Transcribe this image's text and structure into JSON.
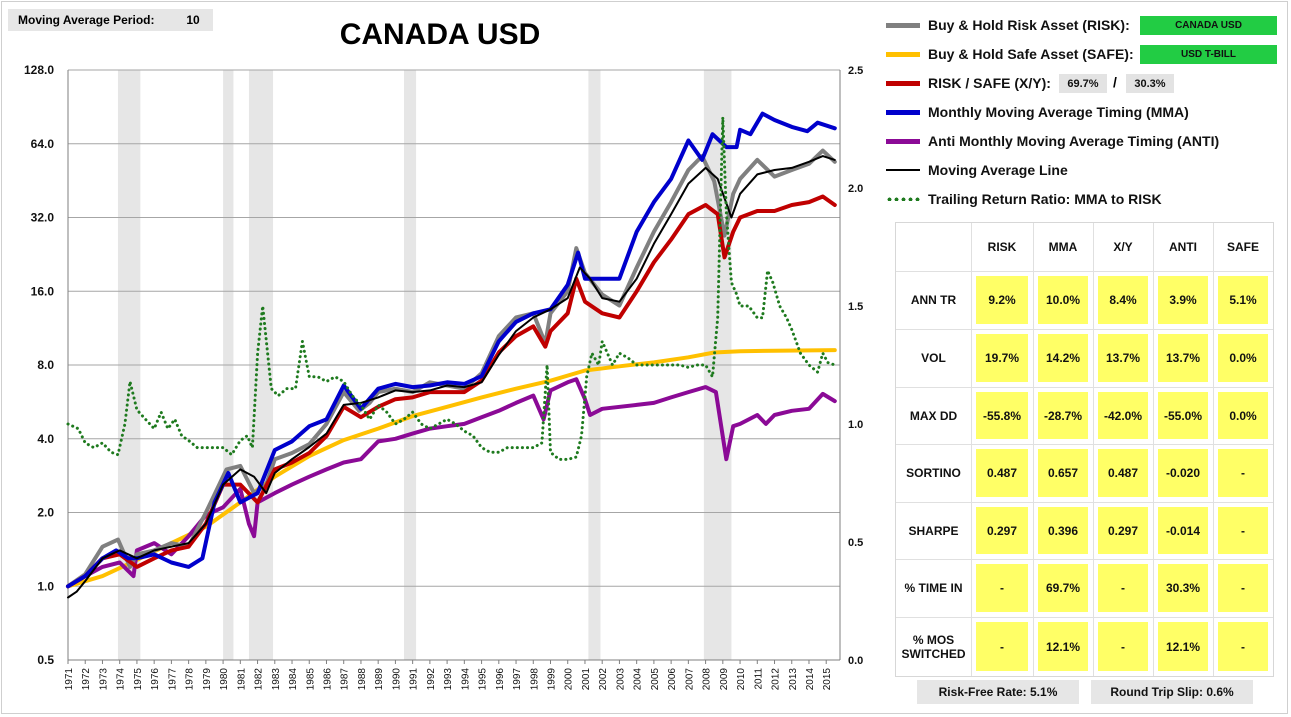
{
  "moving_average": {
    "label": "Moving Average Period:",
    "value": "10"
  },
  "title": "CANADA USD",
  "legend": {
    "risk": {
      "label": "Buy & Hold Risk Asset (RISK):",
      "color": "#808080",
      "tag": "CANADA USD"
    },
    "safe": {
      "label": "Buy & Hold Safe Asset (SAFE):",
      "color": "#ffc000",
      "tag": "USD T-BILL"
    },
    "xy": {
      "label": "RISK / SAFE (X/Y):",
      "color": "#c00000",
      "risk_pct": "69.7%",
      "slash": "/",
      "safe_pct": "30.3%"
    },
    "mma": {
      "label": "Monthly Moving Average Timing (MMA)",
      "color": "#0000cc"
    },
    "anti": {
      "label": "Anti Monthly Moving Average Timing (ANTI)",
      "color": "#8b0a96"
    },
    "ma_line": {
      "label": "Moving Average Line",
      "color": "#000000"
    },
    "ratio": {
      "label": "Trailing Return Ratio: MMA to RISK",
      "color": "#1e7a1e"
    }
  },
  "stats": {
    "headers": [
      "RISK",
      "MMA",
      "X/Y",
      "ANTI",
      "SAFE"
    ],
    "rows": [
      {
        "label": "ANN TR",
        "values": [
          "9.2%",
          "10.0%",
          "8.4%",
          "3.9%",
          "5.1%"
        ]
      },
      {
        "label": "VOL",
        "values": [
          "19.7%",
          "14.2%",
          "13.7%",
          "13.7%",
          "0.0%"
        ]
      },
      {
        "label": "MAX DD",
        "values": [
          "-55.8%",
          "-28.7%",
          "-42.0%",
          "-55.0%",
          "0.0%"
        ]
      },
      {
        "label": "SORTINO",
        "values": [
          "0.487",
          "0.657",
          "0.487",
          "-0.020",
          "-"
        ]
      },
      {
        "label": "SHARPE",
        "values": [
          "0.297",
          "0.396",
          "0.297",
          "-0.014",
          "-"
        ]
      },
      {
        "label": "% TIME IN",
        "values": [
          "-",
          "69.7%",
          "-",
          "30.3%",
          "-"
        ]
      },
      {
        "label": "% MOS SWITCHED",
        "values": [
          "-",
          "12.1%",
          "-",
          "12.1%",
          "-"
        ]
      }
    ]
  },
  "footer": {
    "risk_free": "Risk-Free Rate:   5.1%",
    "slip": "Round Trip Slip:   0.6%"
  },
  "chart_data": {
    "type": "line",
    "title": "CANADA USD",
    "y_scale": "log2",
    "ylim": [
      0.5,
      128
    ],
    "y_ticks": [
      "0.5",
      "1.0",
      "2.0",
      "4.0",
      "8.0",
      "16.0",
      "32.0",
      "64.0",
      "128.0"
    ],
    "y2lim": [
      0.0,
      2.5
    ],
    "y2_ticks": [
      "0.0",
      "0.5",
      "1.0",
      "1.5",
      "2.0",
      "2.5"
    ],
    "xlim": [
      1971,
      2015.8
    ],
    "x_ticks": [
      "1971",
      "1972",
      "1973",
      "1974",
      "1975",
      "1976",
      "1977",
      "1978",
      "1979",
      "1980",
      "1981",
      "1982",
      "1983",
      "1984",
      "1985",
      "1986",
      "1987",
      "1988",
      "1989",
      "1990",
      "1991",
      "1992",
      "1993",
      "1994",
      "1995",
      "1996",
      "1997",
      "1998",
      "1999",
      "2000",
      "2001",
      "2002",
      "2003",
      "2004",
      "2005",
      "2006",
      "2007",
      "2008",
      "2009",
      "2010",
      "2011",
      "2012",
      "2013",
      "2014",
      "2015"
    ],
    "recessions": [
      [
        1973.9,
        1975.2
      ],
      [
        1980.0,
        1980.6
      ],
      [
        1981.5,
        1982.9
      ],
      [
        1990.5,
        1991.2
      ],
      [
        2001.2,
        2001.9
      ],
      [
        2007.9,
        2009.5
      ]
    ],
    "series": [
      {
        "name": "RISK",
        "color": "#808080",
        "width": 4,
        "x": [
          1971,
          1972,
          1973,
          1973.9,
          1974.6,
          1975,
          1976,
          1977,
          1978,
          1979,
          1980.2,
          1981,
          1981.8,
          1982.5,
          1983,
          1984,
          1985,
          1986,
          1987,
          1987.9,
          1988.5,
          1989,
          1990,
          1991,
          1992,
          1993,
          1994,
          1995,
          1996,
          1997,
          1998,
          1998.7,
          1999,
          2000,
          2000.5,
          2001,
          2002,
          2003,
          2004,
          2005,
          2006,
          2007,
          2007.8,
          2008.5,
          2009.1,
          2009.6,
          2010,
          2011,
          2012,
          2013,
          2014,
          2014.8,
          2015.5
        ],
        "y": [
          1.0,
          1.12,
          1.45,
          1.55,
          1.2,
          1.35,
          1.4,
          1.5,
          1.45,
          2.0,
          3.0,
          3.1,
          2.4,
          2.6,
          3.3,
          3.5,
          3.8,
          4.6,
          6.2,
          5.2,
          5.6,
          6.2,
          6.4,
          6.2,
          6.8,
          6.6,
          6.4,
          7.4,
          10.5,
          12.5,
          13.0,
          9.8,
          13.0,
          16.0,
          24.0,
          19.0,
          15.5,
          14.0,
          20.0,
          28.0,
          37.0,
          50.0,
          57.0,
          45.0,
          27.0,
          40.0,
          46.0,
          55.0,
          47.0,
          50.0,
          53.0,
          60.0,
          54.0
        ]
      },
      {
        "name": "SAFE",
        "color": "#ffc000",
        "width": 4,
        "x": [
          1971,
          1973,
          1975,
          1977,
          1979,
          1981,
          1983,
          1985,
          1987,
          1989,
          1991,
          1993,
          1995,
          1997,
          1999,
          2001,
          2003,
          2005,
          2007,
          2008.5,
          2010,
          2012,
          2015.5
        ],
        "y": [
          1.0,
          1.1,
          1.28,
          1.5,
          1.75,
          2.2,
          2.8,
          3.4,
          3.95,
          4.4,
          4.95,
          5.4,
          5.9,
          6.4,
          6.9,
          7.6,
          7.9,
          8.2,
          8.6,
          9.0,
          9.1,
          9.15,
          9.2
        ]
      },
      {
        "name": "X/Y",
        "color": "#c00000",
        "width": 4,
        "x": [
          1971,
          1972,
          1973,
          1974,
          1975,
          1976,
          1977,
          1978,
          1979,
          1980,
          1981,
          1982,
          1983,
          1984,
          1985,
          1986,
          1987,
          1988,
          1989,
          1990,
          1991,
          1992,
          1993,
          1994,
          1995,
          1996,
          1997,
          1998,
          1998.7,
          1999,
          2000,
          2000.5,
          2001,
          2002,
          2003,
          2004,
          2005,
          2006,
          2007,
          2008,
          2008.7,
          2009.1,
          2009.6,
          2010,
          2011,
          2012,
          2013,
          2014,
          2014.8,
          2015.5
        ],
        "y": [
          1.0,
          1.1,
          1.3,
          1.35,
          1.2,
          1.3,
          1.4,
          1.45,
          1.8,
          2.6,
          2.6,
          2.2,
          3.0,
          3.2,
          3.5,
          4.1,
          5.4,
          4.9,
          5.4,
          5.8,
          5.9,
          6.2,
          6.2,
          6.2,
          6.9,
          9.0,
          10.5,
          11.5,
          9.5,
          11.0,
          13.0,
          18.0,
          14.5,
          13.0,
          12.5,
          16.0,
          21.0,
          26.0,
          33.0,
          36.0,
          33.0,
          22.0,
          28.0,
          32.0,
          34.0,
          34.0,
          36.0,
          37.0,
          39.0,
          36.0
        ]
      },
      {
        "name": "MMA",
        "color": "#0000cc",
        "width": 4,
        "x": [
          1971,
          1972,
          1973,
          1973.8,
          1974.5,
          1975,
          1976,
          1977,
          1978,
          1978.8,
          1979.5,
          1980.3,
          1981,
          1982,
          1983,
          1984,
          1985,
          1986,
          1987,
          1988,
          1989,
          1990,
          1991,
          1992,
          1993,
          1994,
          1995,
          1996,
          1997,
          1998,
          1999,
          2000,
          2000.6,
          2001,
          2002,
          2003,
          2004,
          2005,
          2006,
          2007,
          2007.8,
          2008.4,
          2009.2,
          2009.8,
          2010,
          2010.6,
          2011.3,
          2012,
          2013,
          2013.9,
          2014.5,
          2015.5
        ],
        "y": [
          1.0,
          1.1,
          1.3,
          1.4,
          1.3,
          1.3,
          1.35,
          1.25,
          1.2,
          1.3,
          2.2,
          2.9,
          2.2,
          2.4,
          3.6,
          3.9,
          4.5,
          4.8,
          6.6,
          5.3,
          6.4,
          6.7,
          6.5,
          6.6,
          6.8,
          6.7,
          7.2,
          10.0,
          12.0,
          13.0,
          13.5,
          17.0,
          23.0,
          18.0,
          18.0,
          18.0,
          28.0,
          37.0,
          46.0,
          66.0,
          55.0,
          70.0,
          62.0,
          62.0,
          73.0,
          70.0,
          85.0,
          80.0,
          75.0,
          72.0,
          78.0,
          74.0
        ]
      },
      {
        "name": "ANTI",
        "color": "#8b0a96",
        "width": 4,
        "x": [
          1971,
          1972,
          1973,
          1974,
          1974.8,
          1975,
          1976,
          1977,
          1978,
          1979,
          1980,
          1981,
          1981.5,
          1981.8,
          1982,
          1983,
          1984,
          1985,
          1986,
          1987,
          1988,
          1989,
          1990,
          1991,
          1992,
          1993,
          1994,
          1995,
          1996,
          1997,
          1998,
          1998.6,
          1999,
          2000,
          2000.5,
          2001,
          2001.3,
          2002,
          2004,
          2005,
          2006,
          2007,
          2008,
          2008.6,
          2009.2,
          2009.6,
          2010,
          2011,
          2011.5,
          2012,
          2013,
          2014,
          2014.8,
          2015.5
        ],
        "y": [
          1.0,
          1.1,
          1.2,
          1.25,
          1.1,
          1.4,
          1.5,
          1.35,
          1.6,
          1.95,
          2.1,
          2.5,
          1.8,
          1.6,
          2.2,
          2.4,
          2.6,
          2.8,
          3.0,
          3.2,
          3.3,
          3.9,
          4.0,
          4.2,
          4.4,
          4.5,
          4.6,
          4.9,
          5.2,
          5.6,
          6.0,
          4.8,
          6.3,
          6.8,
          7.0,
          5.8,
          5.0,
          5.3,
          5.5,
          5.6,
          5.9,
          6.2,
          6.5,
          6.2,
          3.3,
          4.5,
          4.6,
          5.0,
          4.6,
          5.0,
          5.2,
          5.3,
          6.1,
          5.7
        ]
      },
      {
        "name": "MA",
        "color": "#000000",
        "width": 2,
        "x": [
          1971,
          1971.5,
          1972,
          1973,
          1974,
          1975,
          1976,
          1977,
          1978,
          1979,
          1980,
          1981,
          1981.8,
          1982.5,
          1983,
          1984,
          1985,
          1986,
          1987,
          1988,
          1989,
          1990,
          1991,
          1992,
          1993,
          1994,
          1995,
          1996,
          1997,
          1998,
          1999,
          2000,
          2000.7,
          2001.3,
          2002,
          2003,
          2004,
          2005,
          2006,
          2007,
          2008,
          2008.7,
          2009.5,
          2010,
          2011,
          2012,
          2013,
          2014,
          2014.8,
          2015.5
        ],
        "y": [
          0.9,
          0.95,
          1.05,
          1.3,
          1.4,
          1.3,
          1.4,
          1.45,
          1.5,
          1.8,
          2.6,
          3.0,
          2.8,
          2.4,
          2.9,
          3.3,
          3.7,
          4.2,
          5.5,
          5.6,
          5.9,
          6.3,
          6.2,
          6.3,
          6.6,
          6.5,
          6.8,
          8.8,
          11.0,
          12.5,
          13.5,
          15.0,
          20.0,
          18.0,
          15.0,
          14.5,
          18.0,
          25.0,
          33.0,
          44.0,
          51.0,
          46.0,
          32.0,
          40.0,
          48.0,
          50.0,
          51.0,
          54.0,
          57.0,
          55.0
        ]
      }
    ],
    "ratio_series": {
      "name": "Trailing Return Ratio: MMA to RISK",
      "axis": "right",
      "color": "#1e7a1e",
      "x": [
        1971,
        1971.6,
        1972,
        1972.5,
        1973,
        1973.5,
        1973.9,
        1974.3,
        1974.6,
        1975,
        1975.5,
        1976,
        1976.4,
        1976.8,
        1977.2,
        1977.6,
        1978,
        1978.5,
        1979,
        1979.5,
        1980,
        1980.5,
        1981,
        1981.4,
        1981.7,
        1982,
        1982.3,
        1982.8,
        1983.2,
        1983.7,
        1984.2,
        1984.6,
        1985,
        1985.5,
        1986,
        1986.5,
        1987,
        1987.5,
        1988,
        1988.5,
        1989,
        1989.5,
        1990,
        1990.5,
        1991,
        1991.5,
        1992,
        1992.5,
        1993,
        1993.5,
        1994,
        1994.5,
        1995,
        1995.5,
        1996,
        1996.5,
        1997,
        1997.5,
        1998,
        1998.5,
        1998.8,
        1999,
        1999.5,
        2000,
        2000.5,
        2000.8,
        2001.1,
        2001.4,
        2001.8,
        2002,
        2002.3,
        2002.6,
        2003,
        2003.5,
        2004,
        2004.5,
        2005,
        2005.5,
        2006,
        2006.5,
        2007,
        2007.5,
        2008,
        2008.4,
        2008.7,
        2009.0,
        2009.2,
        2009.5,
        2009.8,
        2010,
        2010.5,
        2011,
        2011.3,
        2011.6,
        2011.9,
        2012.3,
        2012.7,
        2013,
        2013.5,
        2014,
        2014.5,
        2014.8,
        2015.1,
        2015.5
      ],
      "y": [
        1.0,
        0.98,
        0.92,
        0.9,
        0.92,
        0.88,
        0.87,
        1.0,
        1.18,
        1.06,
        1.02,
        0.98,
        1.05,
        0.98,
        1.02,
        0.95,
        0.93,
        0.9,
        0.9,
        0.9,
        0.9,
        0.87,
        0.93,
        0.95,
        0.9,
        1.3,
        1.5,
        1.15,
        1.12,
        1.15,
        1.15,
        1.35,
        1.2,
        1.2,
        1.18,
        1.2,
        1.18,
        1.12,
        1.08,
        1.02,
        1.08,
        1.05,
        1.0,
        1.02,
        1.05,
        1.0,
        0.98,
        1.0,
        1.02,
        1.0,
        0.97,
        0.95,
        0.9,
        0.88,
        0.88,
        0.9,
        0.9,
        0.9,
        0.9,
        0.92,
        1.25,
        0.88,
        0.85,
        0.85,
        0.86,
        0.95,
        1.2,
        1.3,
        1.25,
        1.35,
        1.3,
        1.25,
        1.3,
        1.28,
        1.25,
        1.25,
        1.25,
        1.25,
        1.25,
        1.25,
        1.24,
        1.25,
        1.25,
        1.2,
        1.45,
        2.3,
        1.9,
        1.6,
        1.55,
        1.5,
        1.5,
        1.45,
        1.45,
        1.65,
        1.6,
        1.5,
        1.45,
        1.4,
        1.3,
        1.25,
        1.22,
        1.3,
        1.26,
        1.25
      ]
    }
  }
}
